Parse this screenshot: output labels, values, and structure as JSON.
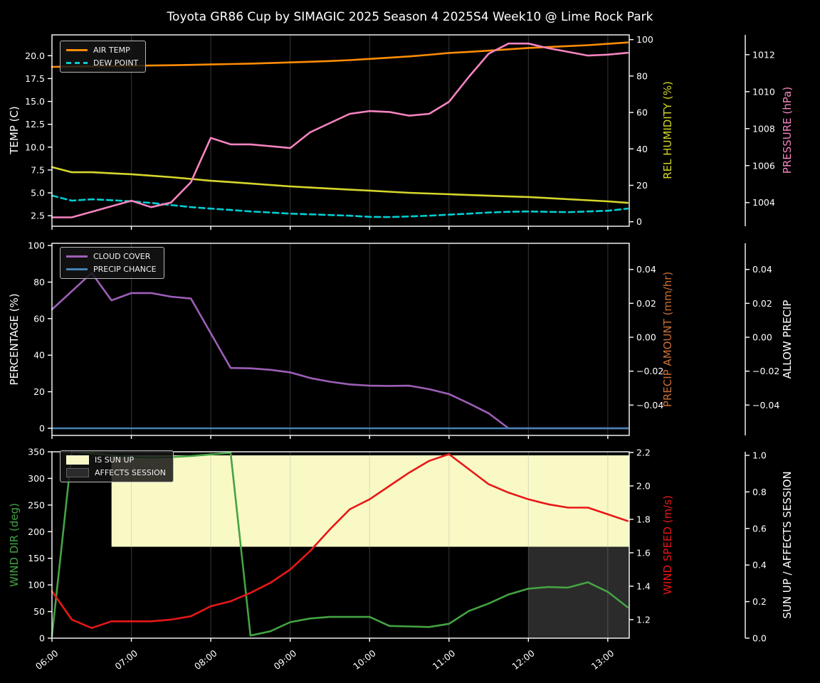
{
  "title": "Toyota GR86 Cup by SIMAGIC 2025 Season 4 2025S4 Week10 @ Lime Rock Park",
  "colors": {
    "background": "#000000",
    "text": "#ffffff",
    "grid": "rgba(160,160,160,0.35)",
    "air_temp": "#ff8c05",
    "dew_point": "#00ced1",
    "rel_humidity": "#d6d62b",
    "pressure": "#f584c0",
    "cloud_cover": "#9d5fb8",
    "precip_chance": "#4682b4",
    "precip_amount": "#c96f35",
    "wind_dir": "#44a344",
    "wind_speed": "#e81717",
    "sun_up_fill": "#f9f9c6",
    "affects_session_fill": "#2b2b2b"
  },
  "chart_data": {
    "type": "line",
    "title": "Toyota GR86 Cup by SIMAGIC 2025 Season 4 2025S4 Week10 @ Lime Rock Park",
    "x": {
      "start_hour": 6,
      "end_hour": 13.27,
      "step_hours": 0.25,
      "tick_hours": [
        6,
        7,
        8,
        9,
        10,
        11,
        12,
        13
      ],
      "tick_labels": [
        "06:00",
        "07:00",
        "08:00",
        "09:00",
        "10:00",
        "11:00",
        "12:00",
        "13:00"
      ],
      "times": [
        "06:00",
        "06:15",
        "06:30",
        "06:45",
        "07:00",
        "07:15",
        "07:30",
        "07:45",
        "08:00",
        "08:15",
        "08:30",
        "08:45",
        "09:00",
        "09:15",
        "09:30",
        "09:45",
        "10:00",
        "10:15",
        "10:30",
        "10:45",
        "11:00",
        "11:15",
        "11:30",
        "11:45",
        "12:00",
        "12:15",
        "12:30",
        "12:45",
        "13:00",
        "13:15"
      ]
    },
    "panels": [
      {
        "name": "temperature-humidity-pressure",
        "axes": {
          "left": {
            "label": "TEMP (C)",
            "color": "#ffffff",
            "min": 1.35,
            "max": 22.28,
            "ticks": [
              2.5,
              5,
              7.5,
              10,
              12.5,
              15,
              17.5,
              20
            ],
            "tick_labels": [
              "2.5",
              "5.0",
              "7.5",
              "10.0",
              "12.5",
              "15.0",
              "17.5",
              "20.0"
            ]
          },
          "right1": {
            "label": "REL HUMIDITY (%)",
            "color": "#d6d62b",
            "min": -2.46,
            "max": 102.6,
            "ticks": [
              0,
              20,
              40,
              60,
              80,
              100
            ],
            "tick_labels": [
              "0",
              "20",
              "40",
              "60",
              "80",
              "100"
            ]
          },
          "right2": {
            "label": "PRESSURE (hPa)",
            "color": "#f584c0",
            "min": 1002.72,
            "max": 1013.07,
            "ticks": [
              1004,
              1006,
              1008,
              1010,
              1012
            ],
            "tick_labels": [
              "1004",
              "1006",
              "1008",
              "1010",
              "1012"
            ]
          }
        },
        "legend": [
          {
            "label": "AIR TEMP",
            "color": "#ff8c05",
            "dash": false,
            "kind": "line"
          },
          {
            "label": "DEW POINT",
            "color": "#00ced1",
            "dash": true,
            "kind": "line"
          }
        ],
        "series": [
          {
            "name": "AIR TEMP",
            "axis": "left",
            "color": "#ff8c05",
            "dash": false,
            "values": [
              18.78,
              18.81,
              18.84,
              18.87,
              18.9,
              18.93,
              18.96,
              19.0,
              19.04,
              19.09,
              19.14,
              19.2,
              19.27,
              19.34,
              19.42,
              19.52,
              19.65,
              19.78,
              19.92,
              20.1,
              20.3,
              20.42,
              20.55,
              20.7,
              20.85,
              20.95,
              21.05,
              21.15,
              21.3,
              21.45
            ]
          },
          {
            "name": "DEW POINT",
            "axis": "left",
            "color": "#00ced1",
            "dash": true,
            "values": [
              4.7,
              4.15,
              4.3,
              4.2,
              4.07,
              3.9,
              3.67,
              3.44,
              3.28,
              3.13,
              2.97,
              2.85,
              2.73,
              2.66,
              2.58,
              2.5,
              2.38,
              2.35,
              2.42,
              2.5,
              2.62,
              2.73,
              2.85,
              2.93,
              2.97,
              2.93,
              2.89,
              2.97,
              3.05,
              3.28
            ]
          },
          {
            "name": "REL HUMIDITY",
            "axis": "right1",
            "color": "#d6d62b",
            "dash": false,
            "values": [
              30.0,
              27.2,
              27.2,
              26.6,
              26.1,
              25.3,
              24.5,
              23.5,
              22.5,
              21.8,
              21.0,
              20.2,
              19.4,
              18.8,
              18.2,
              17.6,
              17.1,
              16.5,
              15.9,
              15.5,
              15.1,
              14.7,
              14.3,
              13.9,
              13.6,
              13.0,
              12.4,
              11.8,
              11.2,
              10.4
            ]
          },
          {
            "name": "PRESSURE",
            "axis": "right2",
            "color": "#f584c0",
            "dash": false,
            "values": [
              1003.2,
              1003.2,
              1003.5,
              1003.8,
              1004.1,
              1003.75,
              1004.0,
              1005.1,
              1007.5,
              1007.15,
              1007.15,
              1007.05,
              1006.95,
              1007.8,
              1008.3,
              1008.8,
              1008.95,
              1008.9,
              1008.7,
              1008.8,
              1009.45,
              1010.8,
              1012.05,
              1012.6,
              1012.6,
              1012.35,
              1012.15,
              1011.95,
              1012.0,
              1012.1
            ]
          }
        ],
        "bands": []
      },
      {
        "name": "cloud-precip",
        "axes": {
          "left": {
            "label": "PERCENTAGE (%)",
            "color": "#ffffff",
            "min": -3.9,
            "max": 101.2,
            "ticks": [
              0,
              20,
              40,
              60,
              80,
              100
            ],
            "tick_labels": [
              "0",
              "20",
              "40",
              "60",
              "80",
              "100"
            ]
          },
          "right1": {
            "label": "PRECIP AMOUNT (mm/hr)",
            "color": "#c96f35",
            "min": -0.0579,
            "max": 0.0554,
            "ticks": [
              -0.04,
              -0.02,
              0,
              0.02,
              0.04
            ],
            "tick_labels": [
              "−0.04",
              "−0.02",
              "0.00",
              "0.02",
              "0.04"
            ]
          },
          "right2": {
            "label": "ALLOW PRECIP",
            "color": "#ffffff",
            "min": -0.0579,
            "max": 0.0554,
            "ticks": [
              -0.04,
              -0.02,
              0,
              0.02,
              0.04
            ],
            "tick_labels": [
              "−0.04",
              "−0.02",
              "0.00",
              "0.02",
              "0.04"
            ]
          }
        },
        "legend": [
          {
            "label": "CLOUD COVER",
            "color": "#9d5fb8",
            "dash": false,
            "kind": "line"
          },
          {
            "label": "PRECIP CHANCE",
            "color": "#4682b4",
            "dash": false,
            "kind": "line"
          }
        ],
        "series": [
          {
            "name": "CLOUD COVER",
            "axis": "left",
            "color": "#9d5fb8",
            "dash": false,
            "values": [
              65,
              75,
              85,
              70,
              74,
              74,
              72,
              71,
              52,
              33,
              32.8,
              32,
              30.6,
              27.5,
              25.5,
              24,
              23.3,
              23.2,
              23.3,
              21.4,
              18.7,
              13.6,
              8.2,
              0,
              0,
              0,
              0,
              0,
              0,
              0
            ]
          },
          {
            "name": "PRECIP CHANCE",
            "axis": "left",
            "color": "#4682b4",
            "dash": false,
            "values": [
              0,
              0,
              0,
              0,
              0,
              0,
              0,
              0,
              0,
              0,
              0,
              0,
              0,
              0,
              0,
              0,
              0,
              0,
              0,
              0,
              0,
              0,
              0,
              0,
              0,
              0,
              0,
              0,
              0,
              0
            ]
          },
          {
            "name": "PRECIP AMOUNT",
            "axis": "right1",
            "color": "#c96f35",
            "dash": false,
            "values": []
          }
        ],
        "bands": []
      },
      {
        "name": "wind-sun",
        "axes": {
          "left": {
            "label": "WIND DIR (deg)",
            "color": "#44a344",
            "min": 0,
            "max": 350,
            "ticks": [
              0,
              50,
              100,
              150,
              200,
              250,
              300,
              350
            ],
            "tick_labels": [
              "0",
              "50",
              "100",
              "150",
              "200",
              "250",
              "300",
              "350"
            ]
          },
          "right1": {
            "label": "WIND SPEED (m/s)",
            "color": "#e81717",
            "min": 1.089,
            "max": 2.2043,
            "ticks": [
              1.2,
              1.4,
              1.6,
              1.8,
              2.0,
              2.2
            ],
            "tick_labels": [
              "1.2",
              "1.4",
              "1.6",
              "1.8",
              "2.0",
              "2.2"
            ]
          },
          "right2": {
            "label": "SUN UP / AFFECTS SESSION",
            "color": "#ffffff",
            "min": 0,
            "max": 1.0195,
            "ticks": [
              0,
              0.2,
              0.4,
              0.6,
              0.8,
              1.0
            ],
            "tick_labels": [
              "0.0",
              "0.2",
              "0.4",
              "0.6",
              "0.8",
              "1.0"
            ]
          }
        },
        "legend": [
          {
            "label": "IS SUN UP",
            "color": "#f9f9c6",
            "dash": false,
            "kind": "patch"
          },
          {
            "label": "AFFECTS SESSION",
            "color": "#2b2b2b",
            "dash": false,
            "kind": "patch"
          }
        ],
        "series": [
          {
            "name": "WIND DIR",
            "axis": "left",
            "color": "#44a344",
            "dash": false,
            "values": [
              4,
              350,
              347,
              343,
              340,
              339,
              340,
              342,
              345,
              348,
              5,
              13,
              30,
              37,
              40,
              40,
              40,
              23,
              22,
              21,
              27,
              51,
              65,
              82,
              93,
              96,
              95,
              105,
              87,
              58
            ]
          },
          {
            "name": "WIND SPEED",
            "axis": "right1",
            "color": "#e81717",
            "dash": false,
            "values": [
              1.37,
              1.2,
              1.15,
              1.19,
              1.19,
              1.19,
              1.2,
              1.22,
              1.28,
              1.31,
              1.36,
              1.42,
              1.5,
              1.61,
              1.74,
              1.86,
              1.92,
              2.0,
              2.08,
              2.15,
              2.19,
              2.1,
              2.01,
              1.96,
              1.92,
              1.89,
              1.87,
              1.87,
              1.83,
              1.79
            ]
          }
        ],
        "bands": [
          {
            "name": "IS SUN UP",
            "color": "#f9f9c6",
            "axis": "right2",
            "from_time": "06:45",
            "to_time": "13:15",
            "from_hour": 6.75,
            "to_hour": 13.27,
            "v0": 0.5,
            "v1": 1.0
          },
          {
            "name": "AFFECTS SESSION",
            "color": "#2b2b2b",
            "axis": "right2",
            "from_time": "12:00",
            "to_time": "13:15",
            "from_hour": 12.0,
            "to_hour": 13.27,
            "v0": 0.0,
            "v1": 0.5
          }
        ]
      }
    ]
  }
}
